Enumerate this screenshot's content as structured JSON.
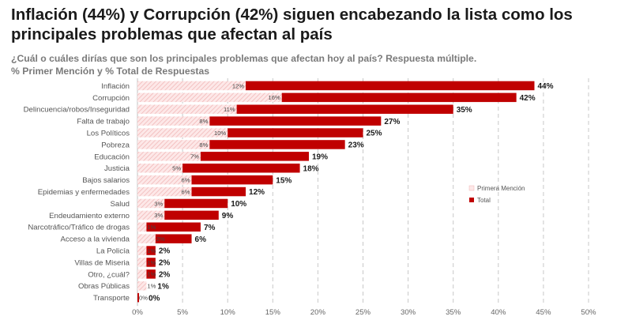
{
  "header": {
    "title_line1": "Inflación (44%) y Corrupción (42%) siguen encabezando la lista como los",
    "title_line2": "principales problemas que afectan al país",
    "subtitle_line1": "¿Cuál o cuáles dirías que son los principales problemas que afectan hoy al país? Respuesta múltiple.",
    "subtitle_line2": "% Primer Mención y % Total de Respuestas"
  },
  "colors": {
    "total": "#c00000",
    "first_mention_fill": "#fde8e8",
    "first_mention_hatch": "#f0b3b3",
    "grid": "#c8c8c8"
  },
  "chart_data": {
    "type": "bar",
    "orientation": "horizontal",
    "categories": [
      "Inflación",
      "Corrupción",
      "Delincuencia/robos/Inseguridad",
      "Falta de trabajo",
      "Los Políticos",
      "Pobreza",
      "Educación",
      "Justicia",
      "Bajos salarios",
      "Epidemias y enfermedades",
      "Salud",
      "Endeudamiento externo",
      "Narcotráfico/Tráfico de drogas",
      "Acceso a la vivienda",
      "La Policía",
      "Villas de Miseria",
      "Otro, ¿cuál?",
      "Obras Públicas",
      "Transporte"
    ],
    "series": [
      {
        "name": "Primera Mención",
        "values": [
          12,
          16,
          11,
          8,
          10,
          8,
          7,
          5,
          6,
          6,
          3,
          3,
          1,
          2,
          1,
          1,
          1,
          1,
          0
        ]
      },
      {
        "name": "Total",
        "values": [
          44,
          42,
          35,
          27,
          25,
          23,
          19,
          18,
          15,
          12,
          10,
          9,
          7,
          6,
          2,
          2,
          2,
          1,
          0
        ]
      }
    ],
    "xlim": [
      0,
      50
    ],
    "x_ticks": [
      "0%",
      "5%",
      "10%",
      "15%",
      "20%",
      "25%",
      "30%",
      "35%",
      "40%",
      "45%",
      "50%"
    ],
    "value_suffix": "%",
    "grid": "vertical dashed",
    "legend_position": "right"
  }
}
